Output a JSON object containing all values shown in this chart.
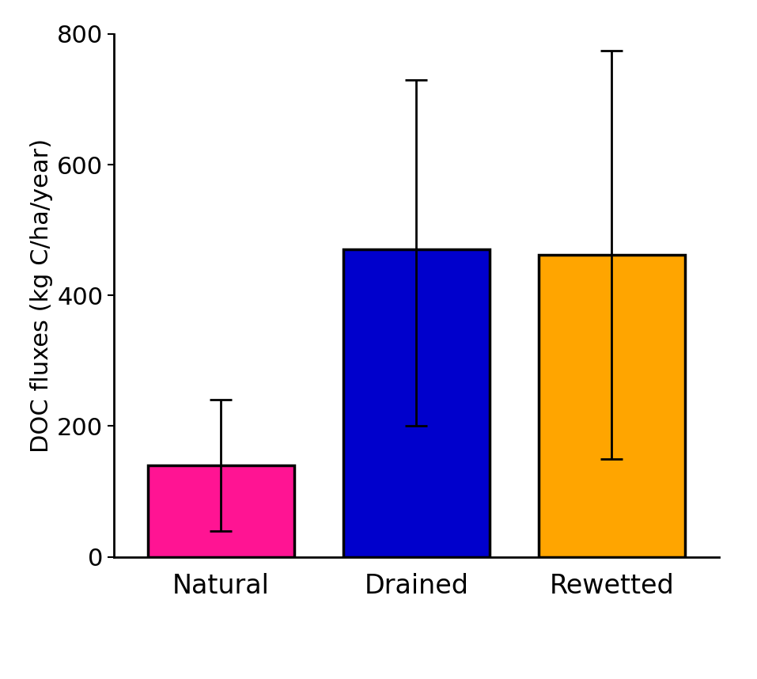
{
  "categories": [
    "Natural",
    "Drained",
    "Rewetted"
  ],
  "values": [
    140,
    470,
    462
  ],
  "bar_colors": [
    "#FF1493",
    "#0000CC",
    "#FFA500"
  ],
  "edge_color": "#000000",
  "error_lower": [
    100,
    270,
    312
  ],
  "error_upper": [
    100,
    260,
    312
  ],
  "ylabel": "DOC fluxes (kg C/ha/year)",
  "ylim": [
    0,
    800
  ],
  "yticks": [
    0,
    200,
    400,
    600,
    800
  ],
  "bar_width": 0.75,
  "figsize": [
    9.57,
    8.58
  ],
  "dpi": 100,
  "tick_labelsize": 22,
  "ylabel_fontsize": 22,
  "xlabel_fontsize": 24,
  "background_color": "#ffffff",
  "edge_linewidth": 2.5,
  "capsize": 10,
  "elinewidth": 2.0
}
